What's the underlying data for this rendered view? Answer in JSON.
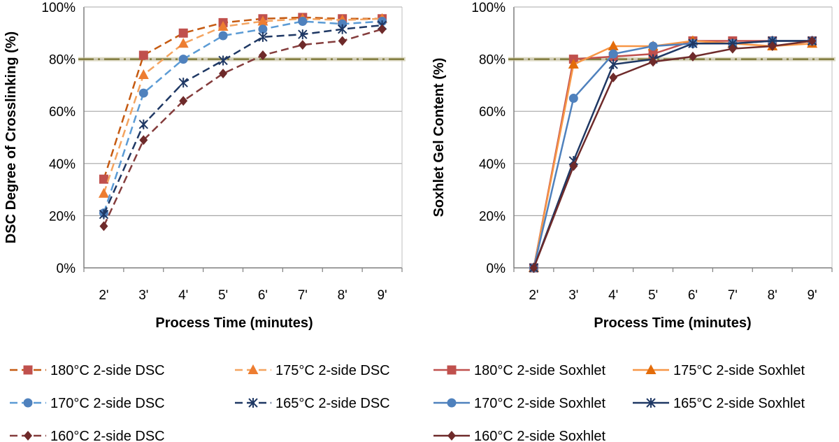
{
  "chart_data": [
    {
      "type": "line",
      "categories": [
        "2'",
        "3'",
        "4'",
        "5'",
        "6'",
        "7'",
        "8'",
        "9'"
      ],
      "ylabel": "DSC Degree of Crosslinking (%)",
      "xlabel": "Process Time (minutes)",
      "ylim": [
        0,
        100
      ],
      "yticks": [
        "0%",
        "20%",
        "40%",
        "60%",
        "80%",
        "100%"
      ],
      "threshold": 80,
      "line_style": "dashed",
      "series": [
        {
          "name": "180°C 2-side DSC",
          "values": [
            34,
            81.5,
            90,
            94,
            95.5,
            96,
            95.5,
            95.5
          ],
          "color": "#c55a11",
          "marker_color": "#c0504d",
          "marker": "square"
        },
        {
          "name": "175°C 2-side DSC",
          "values": [
            28.5,
            74,
            86,
            92.5,
            94.5,
            95.5,
            95,
            95.5
          ],
          "color": "#f4a460",
          "marker_color": "#ed7d31",
          "marker": "triangle"
        },
        {
          "name": "170°C 2-side DSC",
          "values": [
            21,
            67,
            80,
            89,
            91.5,
            94.5,
            93.5,
            94.5
          ],
          "color": "#5b9bd5",
          "marker_color": "#4f81bd",
          "marker": "circle"
        },
        {
          "name": "165°C 2-side DSC",
          "values": [
            20.5,
            55,
            71,
            79.5,
            88.5,
            89.5,
            91.5,
            93
          ],
          "color": "#1f3864",
          "marker_color": "#1f3864",
          "marker": "star"
        },
        {
          "name": "160°C 2-side DSC",
          "values": [
            16,
            49,
            64,
            74.5,
            81.5,
            85.5,
            87,
            91.5
          ],
          "color": "#843c3c",
          "marker_color": "#6e2a2a",
          "marker": "diamond"
        }
      ]
    },
    {
      "type": "line",
      "categories": [
        "2'",
        "3'",
        "4'",
        "5'",
        "6'",
        "7'",
        "8'",
        "9'"
      ],
      "ylabel": "Soxhlet Gel Content (%)",
      "xlabel": "Process Time (minutes)",
      "ylim": [
        0,
        100
      ],
      "yticks": [
        "0%",
        "20%",
        "40%",
        "60%",
        "80%",
        "100%"
      ],
      "threshold": 80,
      "line_style": "solid",
      "series": [
        {
          "name": "180°C 2-side Soxhlet",
          "values": [
            0,
            80,
            81,
            82,
            87,
            87,
            87,
            87
          ],
          "color": "#c0504d",
          "marker_color": "#c0504d",
          "marker": "square"
        },
        {
          "name": "175°C 2-side Soxhlet",
          "values": [
            0,
            78,
            85,
            85,
            87,
            86,
            85,
            86
          ],
          "color": "#f79646",
          "marker_color": "#e36c0a",
          "marker": "triangle"
        },
        {
          "name": "170°C 2-side Soxhlet",
          "values": [
            0,
            65,
            82,
            85,
            86,
            86,
            87,
            87
          ],
          "color": "#4f81bd",
          "marker_color": "#4f81bd",
          "marker": "circle"
        },
        {
          "name": "165°C 2-side Soxhlet",
          "values": [
            0,
            41,
            78,
            80,
            86,
            86,
            87,
            87
          ],
          "color": "#1f3864",
          "marker_color": "#1f3864",
          "marker": "star"
        },
        {
          "name": "160°C 2-side Soxhlet",
          "values": [
            0,
            39,
            73,
            79,
            81,
            84,
            85,
            87
          ],
          "color": "#6e2a2a",
          "marker_color": "#6e2a2a",
          "marker": "diamond"
        }
      ]
    }
  ]
}
